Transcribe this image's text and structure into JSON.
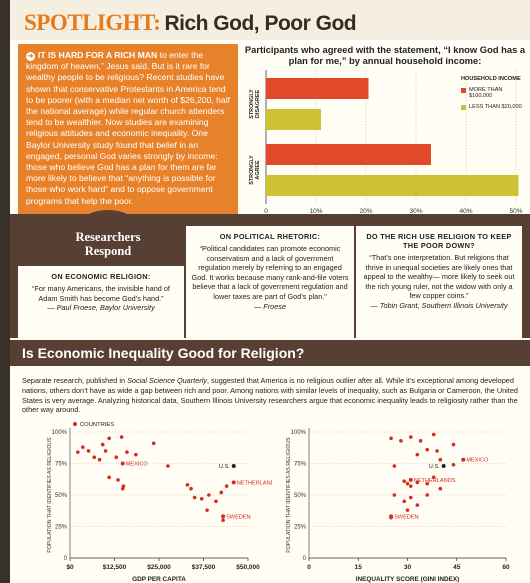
{
  "spotlight": {
    "label": "SPOTLIGHT:",
    "title": "Rich God, Poor God"
  },
  "intro": {
    "lead": "IT IS HARD FOR A RICH MAN",
    "text": " to enter the kingdom of heaven,” Jesus said. But is it rare for wealthy people to be religious? Recent studies have shown that conservative Protestants in America tend to be poorer (with a median net worth of $26,200, half the national average) while regular church attenders tend to be wealthier. Now studies are examining religious attitudes and economic inequality. One Baylor University study found that belief in an engaged, personal God varies strongly by income: those who believe God has a plan for them are far more likely to believe that “anything is possible for those who work hard” and to oppose government programs that help the poor."
  },
  "chart_data": [
    {
      "type": "bar",
      "orientation": "horizontal",
      "title": "Participants who agreed with the statement, “I know God has a plan for me,” by annual household income:",
      "categories": [
        "STRONGLY DISAGREE",
        "STRONGLY AGREE"
      ],
      "series": [
        {
          "name": "MORE THAN $100,000",
          "values": [
            20.5,
            33
          ]
        },
        {
          "name": "LESS THAN $20,000",
          "values": [
            11,
            50.5
          ]
        }
      ],
      "legend_title": "HOUSEHOLD INCOME",
      "xlim": [
        0,
        50
      ],
      "xticks": [
        "0",
        "10%",
        "20%",
        "30%",
        "40%",
        "50%"
      ],
      "colors": {
        "more": "#e2492a",
        "less": "#cfc134"
      }
    },
    {
      "type": "scatter",
      "title": "",
      "xlabel": "GDP PER CAPITA",
      "ylabel": "POPULATION THAT IDENTIFIES AS RELIGIOUS",
      "xlim": [
        0,
        50000
      ],
      "ylim": [
        0,
        100
      ],
      "xticks": [
        "$0",
        "$12,500",
        "$25,000",
        "$37,500",
        "$50,000"
      ],
      "yticks": [
        "0",
        "25%",
        "50%",
        "75%",
        "100%"
      ],
      "legend": "COUNTRIES",
      "points": [
        [
          2200,
          84
        ],
        [
          3600,
          88
        ],
        [
          5200,
          85
        ],
        [
          6800,
          80
        ],
        [
          8300,
          78
        ],
        [
          9200,
          90
        ],
        [
          10000,
          85
        ],
        [
          11000,
          95
        ],
        [
          13000,
          80
        ],
        [
          14500,
          96
        ],
        [
          16000,
          84
        ],
        [
          18500,
          82
        ],
        [
          23500,
          91
        ],
        [
          13500,
          62
        ],
        [
          15000,
          57
        ],
        [
          11000,
          64
        ],
        [
          27500,
          73
        ],
        [
          14800,
          55
        ],
        [
          33000,
          58
        ],
        [
          34000,
          55
        ],
        [
          35000,
          48
        ],
        [
          37000,
          47
        ],
        [
          39000,
          50
        ],
        [
          41000,
          45
        ],
        [
          42500,
          52
        ],
        [
          44000,
          57
        ],
        [
          38500,
          38
        ],
        [
          43000,
          30
        ]
      ],
      "labeled": [
        {
          "label": "MEXICO",
          "x": 14800,
          "y": 75
        },
        {
          "label": "U.S.",
          "x": 46000,
          "y": 73
        },
        {
          "label": "NETHERLANDS",
          "x": 46000,
          "y": 60
        },
        {
          "label": "SWEDEN",
          "x": 43000,
          "y": 33
        }
      ]
    },
    {
      "type": "scatter",
      "title": "",
      "xlabel": "INEQUALITY SCORE (GINI INDEX)",
      "ylabel": "POPULATION THAT IDENTIFIES AS RELIGIOUS",
      "xlim": [
        0,
        60
      ],
      "ylim": [
        0,
        100
      ],
      "xticks": [
        "0",
        "15",
        "30",
        "45",
        "60"
      ],
      "yticks": [
        "0",
        "25%",
        "50%",
        "75%",
        "100%"
      ],
      "points": [
        [
          25,
          95
        ],
        [
          28,
          93
        ],
        [
          31,
          96
        ],
        [
          34,
          93
        ],
        [
          38,
          98
        ],
        [
          36,
          86
        ],
        [
          39,
          85
        ],
        [
          44,
          90
        ],
        [
          33,
          82
        ],
        [
          26,
          73
        ],
        [
          40,
          78
        ],
        [
          44,
          74
        ],
        [
          29,
          61
        ],
        [
          30,
          59
        ],
        [
          33,
          60
        ],
        [
          31,
          57
        ],
        [
          36,
          59
        ],
        [
          40,
          55
        ],
        [
          26,
          50
        ],
        [
          29,
          45
        ],
        [
          31,
          48
        ],
        [
          33,
          42
        ],
        [
          36,
          50
        ],
        [
          25,
          32
        ],
        [
          30,
          38
        ],
        [
          38,
          64
        ]
      ],
      "labeled": [
        {
          "label": "MEXICO",
          "x": 47,
          "y": 78
        },
        {
          "label": "U.S.",
          "x": 41,
          "y": 73
        },
        {
          "label": "NETHERLANDS",
          "x": 31,
          "y": 62
        },
        {
          "label": "SWEDEN",
          "x": 25,
          "y": 33
        }
      ]
    }
  ],
  "researchers": {
    "badge_line1": "Researchers",
    "badge_line2": "Respond",
    "econ": {
      "heading": "ON ECONOMIC RELIGION:",
      "body": "“For many Americans, the invisible hand of Adam Smith has become God’s hand.”",
      "attribution": "— Paul Froese, Baylor University"
    },
    "political": {
      "heading": "ON POLITICAL RHETORIC:",
      "body": "“Political candidates can promote economic conservatism and a lack of government regulation merely by referring to an engaged God. It works because many rank-and-file voters believe that a lack of government regulation and lower taxes are part of God’s plan.”",
      "attribution": "— Froese"
    },
    "rich": {
      "heading": "DO THE RICH USE RELIGION TO KEEP THE POOR DOWN?",
      "body": "“That’s one interpretation. But religions that thrive in unequal societies are likely ones that appeal to the wealthy— more likely to seek out the rich young ruler, not the widow with only a few copper coins.”",
      "attribution": "— Tobin Grant, Southern Illinois University"
    }
  },
  "inequality": {
    "title": "Is Economic Inequality Good for Religion?",
    "body_before": "Separate research, published in ",
    "journal": "Social Science Quarterly",
    "body_after": ", suggested that America is no religious outlier after all. While it’s exceptional among developed nations, others don’t have as wide a gap between rich and poor. Among nations with similar levels of inequality, such as Bulgaria or Cameroon, the United States is very average. Analyzing historical data, Southern Illinois University researchers argue that economic inequality leads to religiosity rather than the other way around."
  }
}
